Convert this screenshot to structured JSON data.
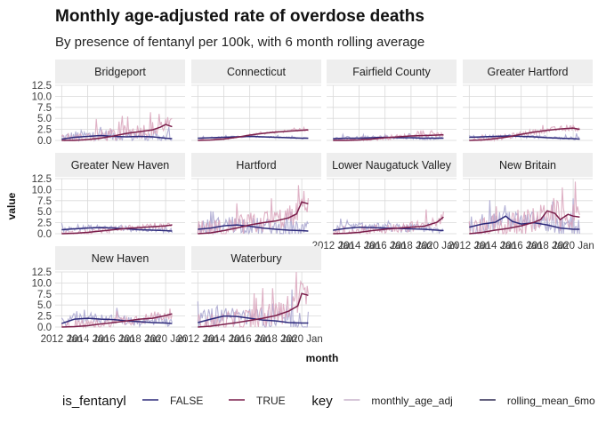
{
  "chart_data": {
    "type": "line",
    "title": "Monthly age-adjusted rate of overdose deaths",
    "subtitle": "By presence of fentanyl per 100k, with 6 month rolling average",
    "xlabel": "month",
    "ylabel": "value",
    "ylim": [
      0,
      12.5
    ],
    "y_ticks": [
      "0.0",
      "2.5",
      "5.0",
      "7.5",
      "10.0",
      "12.5"
    ],
    "x_ticks": [
      "2012 Jan",
      "2014 Jan",
      "2016 Jan",
      "2018 Jan",
      "2020 Jan"
    ],
    "x_tick_years": [
      2012,
      2014,
      2016,
      2018,
      2020
    ],
    "xlim": [
      2011.5,
      2021.5
    ],
    "legends": [
      {
        "title": "is_fentanyl",
        "entries": [
          {
            "label": "FALSE",
            "color": "#2d2a7a"
          },
          {
            "label": "TRUE",
            "color": "#7a1f4b"
          }
        ]
      },
      {
        "title": "key",
        "entries": [
          {
            "label": "monthly_age_adj",
            "color": "#c9b3cc"
          },
          {
            "label": "rolling_mean_6mo",
            "color": "#2f2a52"
          }
        ]
      }
    ],
    "colors": {
      "FALSE": "#2d2a7a",
      "TRUE": "#7a1f4b",
      "FALSE_raw": "#a7a3cf",
      "TRUE_raw": "#d9a3bb"
    },
    "panels": [
      {
        "name": "Bridgeport",
        "false_roll": [
          [
            2012.0,
            0.3
          ],
          [
            2013.0,
            0.7
          ],
          [
            2014.0,
            0.9
          ],
          [
            2015.0,
            1.1
          ],
          [
            2016.0,
            0.9
          ],
          [
            2017.0,
            0.8
          ],
          [
            2018.0,
            0.9
          ],
          [
            2019.0,
            0.8
          ],
          [
            2020.0,
            0.5
          ],
          [
            2020.5,
            0.4
          ]
        ],
        "true_roll": [
          [
            2012.0,
            0.0
          ],
          [
            2013.0,
            0.0
          ],
          [
            2014.0,
            0.2
          ],
          [
            2015.0,
            0.5
          ],
          [
            2016.0,
            1.0
          ],
          [
            2017.0,
            1.6
          ],
          [
            2018.0,
            2.0
          ],
          [
            2019.0,
            2.4
          ],
          [
            2019.6,
            3.0
          ],
          [
            2020.0,
            3.6
          ],
          [
            2020.5,
            3.1
          ]
        ],
        "false_amp": 1.4,
        "true_amp": 1.8,
        "false_peak": 3.0,
        "true_peak": 6.0
      },
      {
        "name": "Connecticut",
        "false_roll": [
          [
            2012.0,
            0.5
          ],
          [
            2013.0,
            0.6
          ],
          [
            2014.0,
            0.7
          ],
          [
            2015.0,
            0.8
          ],
          [
            2016.0,
            0.9
          ],
          [
            2017.0,
            0.8
          ],
          [
            2018.0,
            0.7
          ],
          [
            2019.0,
            0.6
          ],
          [
            2020.0,
            0.5
          ],
          [
            2020.5,
            0.5
          ]
        ],
        "true_roll": [
          [
            2012.0,
            0.0
          ],
          [
            2013.0,
            0.1
          ],
          [
            2014.0,
            0.3
          ],
          [
            2015.0,
            0.7
          ],
          [
            2016.0,
            1.2
          ],
          [
            2017.0,
            1.6
          ],
          [
            2018.0,
            1.9
          ],
          [
            2019.0,
            2.1
          ],
          [
            2020.0,
            2.3
          ],
          [
            2020.5,
            2.4
          ]
        ],
        "false_amp": 0.2,
        "true_amp": 0.3,
        "false_peak": 1.0,
        "true_peak": 2.8
      },
      {
        "name": "Fairfield County",
        "false_roll": [
          [
            2012.0,
            0.4
          ],
          [
            2013.0,
            0.5
          ],
          [
            2014.0,
            0.5
          ],
          [
            2015.0,
            0.6
          ],
          [
            2016.0,
            0.7
          ],
          [
            2017.0,
            0.6
          ],
          [
            2018.0,
            0.6
          ],
          [
            2019.0,
            0.5
          ],
          [
            2020.0,
            0.5
          ],
          [
            2020.5,
            0.5
          ]
        ],
        "true_roll": [
          [
            2012.0,
            0.0
          ],
          [
            2013.0,
            0.0
          ],
          [
            2014.0,
            0.1
          ],
          [
            2015.0,
            0.3
          ],
          [
            2016.0,
            0.6
          ],
          [
            2017.0,
            0.8
          ],
          [
            2018.0,
            1.0
          ],
          [
            2019.0,
            1.1
          ],
          [
            2020.0,
            1.2
          ],
          [
            2020.5,
            1.3
          ]
        ],
        "false_amp": 0.4,
        "true_amp": 0.5,
        "false_peak": 1.4,
        "true_peak": 2.0
      },
      {
        "name": "Greater Hartford",
        "false_roll": [
          [
            2012.0,
            0.7
          ],
          [
            2013.0,
            0.8
          ],
          [
            2014.0,
            0.9
          ],
          [
            2015.0,
            1.0
          ],
          [
            2016.0,
            0.9
          ],
          [
            2017.0,
            0.8
          ],
          [
            2018.0,
            0.6
          ],
          [
            2019.0,
            0.5
          ],
          [
            2020.0,
            0.4
          ],
          [
            2020.5,
            0.3
          ]
        ],
        "true_roll": [
          [
            2012.0,
            0.0
          ],
          [
            2013.0,
            0.1
          ],
          [
            2014.0,
            0.4
          ],
          [
            2015.0,
            0.8
          ],
          [
            2016.0,
            1.4
          ],
          [
            2017.0,
            1.9
          ],
          [
            2018.0,
            2.3
          ],
          [
            2019.0,
            2.6
          ],
          [
            2020.0,
            2.8
          ],
          [
            2020.5,
            2.5
          ]
        ],
        "false_amp": 0.4,
        "true_amp": 0.6,
        "false_peak": 1.6,
        "true_peak": 3.5
      },
      {
        "name": "Greater New Haven",
        "false_roll": [
          [
            2012.0,
            0.9
          ],
          [
            2013.0,
            1.1
          ],
          [
            2014.0,
            1.3
          ],
          [
            2015.0,
            1.4
          ],
          [
            2016.0,
            1.3
          ],
          [
            2017.0,
            1.1
          ],
          [
            2018.0,
            0.9
          ],
          [
            2019.0,
            0.8
          ],
          [
            2020.0,
            0.7
          ],
          [
            2020.5,
            0.6
          ]
        ],
        "true_roll": [
          [
            2012.0,
            0.0
          ],
          [
            2013.0,
            0.1
          ],
          [
            2014.0,
            0.3
          ],
          [
            2015.0,
            0.6
          ],
          [
            2016.0,
            0.9
          ],
          [
            2017.0,
            1.2
          ],
          [
            2018.0,
            1.4
          ],
          [
            2019.0,
            1.6
          ],
          [
            2020.0,
            1.8
          ],
          [
            2020.5,
            2.0
          ]
        ],
        "false_amp": 0.6,
        "true_amp": 0.6,
        "false_peak": 2.0,
        "true_peak": 2.5
      },
      {
        "name": "Hartford",
        "false_roll": [
          [
            2012.0,
            1.0
          ],
          [
            2013.0,
            1.3
          ],
          [
            2014.0,
            1.8
          ],
          [
            2015.0,
            2.0
          ],
          [
            2016.0,
            1.7
          ],
          [
            2017.0,
            1.3
          ],
          [
            2018.0,
            1.0
          ],
          [
            2019.0,
            0.8
          ],
          [
            2020.0,
            0.7
          ],
          [
            2020.5,
            0.6
          ]
        ],
        "true_roll": [
          [
            2012.0,
            0.0
          ],
          [
            2013.0,
            0.2
          ],
          [
            2014.0,
            0.7
          ],
          [
            2015.0,
            1.3
          ],
          [
            2016.0,
            2.0
          ],
          [
            2017.0,
            2.5
          ],
          [
            2018.0,
            2.9
          ],
          [
            2019.0,
            3.6
          ],
          [
            2019.6,
            4.5
          ],
          [
            2020.0,
            7.2
          ],
          [
            2020.5,
            6.8
          ]
        ],
        "false_amp": 2.0,
        "true_amp": 2.6,
        "false_peak": 5.0,
        "true_peak": 11.0
      },
      {
        "name": "Lower Naugatuck Valley",
        "false_roll": [
          [
            2012.0,
            0.8
          ],
          [
            2013.0,
            1.2
          ],
          [
            2014.0,
            1.5
          ],
          [
            2015.0,
            1.4
          ],
          [
            2016.0,
            1.3
          ],
          [
            2017.0,
            1.2
          ],
          [
            2018.0,
            1.1
          ],
          [
            2019.0,
            1.0
          ],
          [
            2020.0,
            0.8
          ],
          [
            2020.5,
            0.7
          ]
        ],
        "true_roll": [
          [
            2012.0,
            0.0
          ],
          [
            2013.0,
            0.1
          ],
          [
            2014.0,
            0.3
          ],
          [
            2015.0,
            0.7
          ],
          [
            2016.0,
            1.0
          ],
          [
            2017.0,
            1.3
          ],
          [
            2018.0,
            1.5
          ],
          [
            2019.0,
            1.7
          ],
          [
            2020.0,
            2.6
          ],
          [
            2020.5,
            3.8
          ]
        ],
        "false_amp": 1.0,
        "true_amp": 1.2,
        "false_peak": 2.4,
        "true_peak": 5.5
      },
      {
        "name": "New Britain",
        "false_roll": [
          [
            2012.0,
            1.5
          ],
          [
            2013.0,
            2.2
          ],
          [
            2014.0,
            2.6
          ],
          [
            2014.8,
            4.0
          ],
          [
            2015.3,
            2.8
          ],
          [
            2016.0,
            2.2
          ],
          [
            2017.0,
            2.5
          ],
          [
            2018.0,
            2.0
          ],
          [
            2019.0,
            1.3
          ],
          [
            2020.0,
            1.0
          ],
          [
            2020.5,
            1.0
          ]
        ],
        "true_roll": [
          [
            2012.0,
            0.0
          ],
          [
            2013.0,
            0.3
          ],
          [
            2014.0,
            0.8
          ],
          [
            2015.0,
            1.2
          ],
          [
            2016.0,
            1.8
          ],
          [
            2017.0,
            2.6
          ],
          [
            2017.5,
            3.2
          ],
          [
            2018.0,
            5.2
          ],
          [
            2018.6,
            4.6
          ],
          [
            2019.0,
            3.2
          ],
          [
            2019.6,
            4.4
          ],
          [
            2020.0,
            4.0
          ],
          [
            2020.5,
            3.8
          ]
        ],
        "false_amp": 2.4,
        "true_amp": 3.2,
        "false_peak": 8.0,
        "true_peak": 10.5
      },
      {
        "name": "New Haven",
        "false_roll": [
          [
            2012.0,
            0.8
          ],
          [
            2013.0,
            1.8
          ],
          [
            2014.0,
            2.0
          ],
          [
            2015.0,
            1.8
          ],
          [
            2016.0,
            1.7
          ],
          [
            2017.0,
            1.4
          ],
          [
            2018.0,
            1.2
          ],
          [
            2019.0,
            1.0
          ],
          [
            2020.0,
            0.9
          ],
          [
            2020.5,
            0.8
          ]
        ],
        "true_roll": [
          [
            2012.0,
            0.0
          ],
          [
            2013.0,
            0.1
          ],
          [
            2014.0,
            0.3
          ],
          [
            2015.0,
            0.7
          ],
          [
            2016.0,
            1.0
          ],
          [
            2017.0,
            1.4
          ],
          [
            2018.0,
            1.8
          ],
          [
            2019.0,
            2.0
          ],
          [
            2020.0,
            2.6
          ],
          [
            2020.5,
            3.0
          ]
        ],
        "false_amp": 1.2,
        "true_amp": 1.2,
        "false_peak": 3.0,
        "true_peak": 3.5
      },
      {
        "name": "Waterbury",
        "false_roll": [
          [
            2012.0,
            1.0
          ],
          [
            2013.0,
            1.8
          ],
          [
            2014.0,
            2.5
          ],
          [
            2015.0,
            2.4
          ],
          [
            2016.0,
            2.0
          ],
          [
            2017.0,
            1.6
          ],
          [
            2018.0,
            1.4
          ],
          [
            2019.0,
            1.0
          ],
          [
            2020.0,
            0.9
          ],
          [
            2020.5,
            0.9
          ]
        ],
        "true_roll": [
          [
            2012.0,
            0.0
          ],
          [
            2013.0,
            0.2
          ],
          [
            2014.0,
            0.6
          ],
          [
            2015.0,
            1.0
          ],
          [
            2016.0,
            1.5
          ],
          [
            2017.0,
            2.0
          ],
          [
            2018.0,
            2.6
          ],
          [
            2019.0,
            3.6
          ],
          [
            2019.7,
            4.8
          ],
          [
            2020.0,
            7.6
          ],
          [
            2020.5,
            7.2
          ]
        ],
        "false_amp": 2.2,
        "true_amp": 2.8,
        "false_peak": 8.5,
        "true_peak": 12.5
      }
    ]
  }
}
